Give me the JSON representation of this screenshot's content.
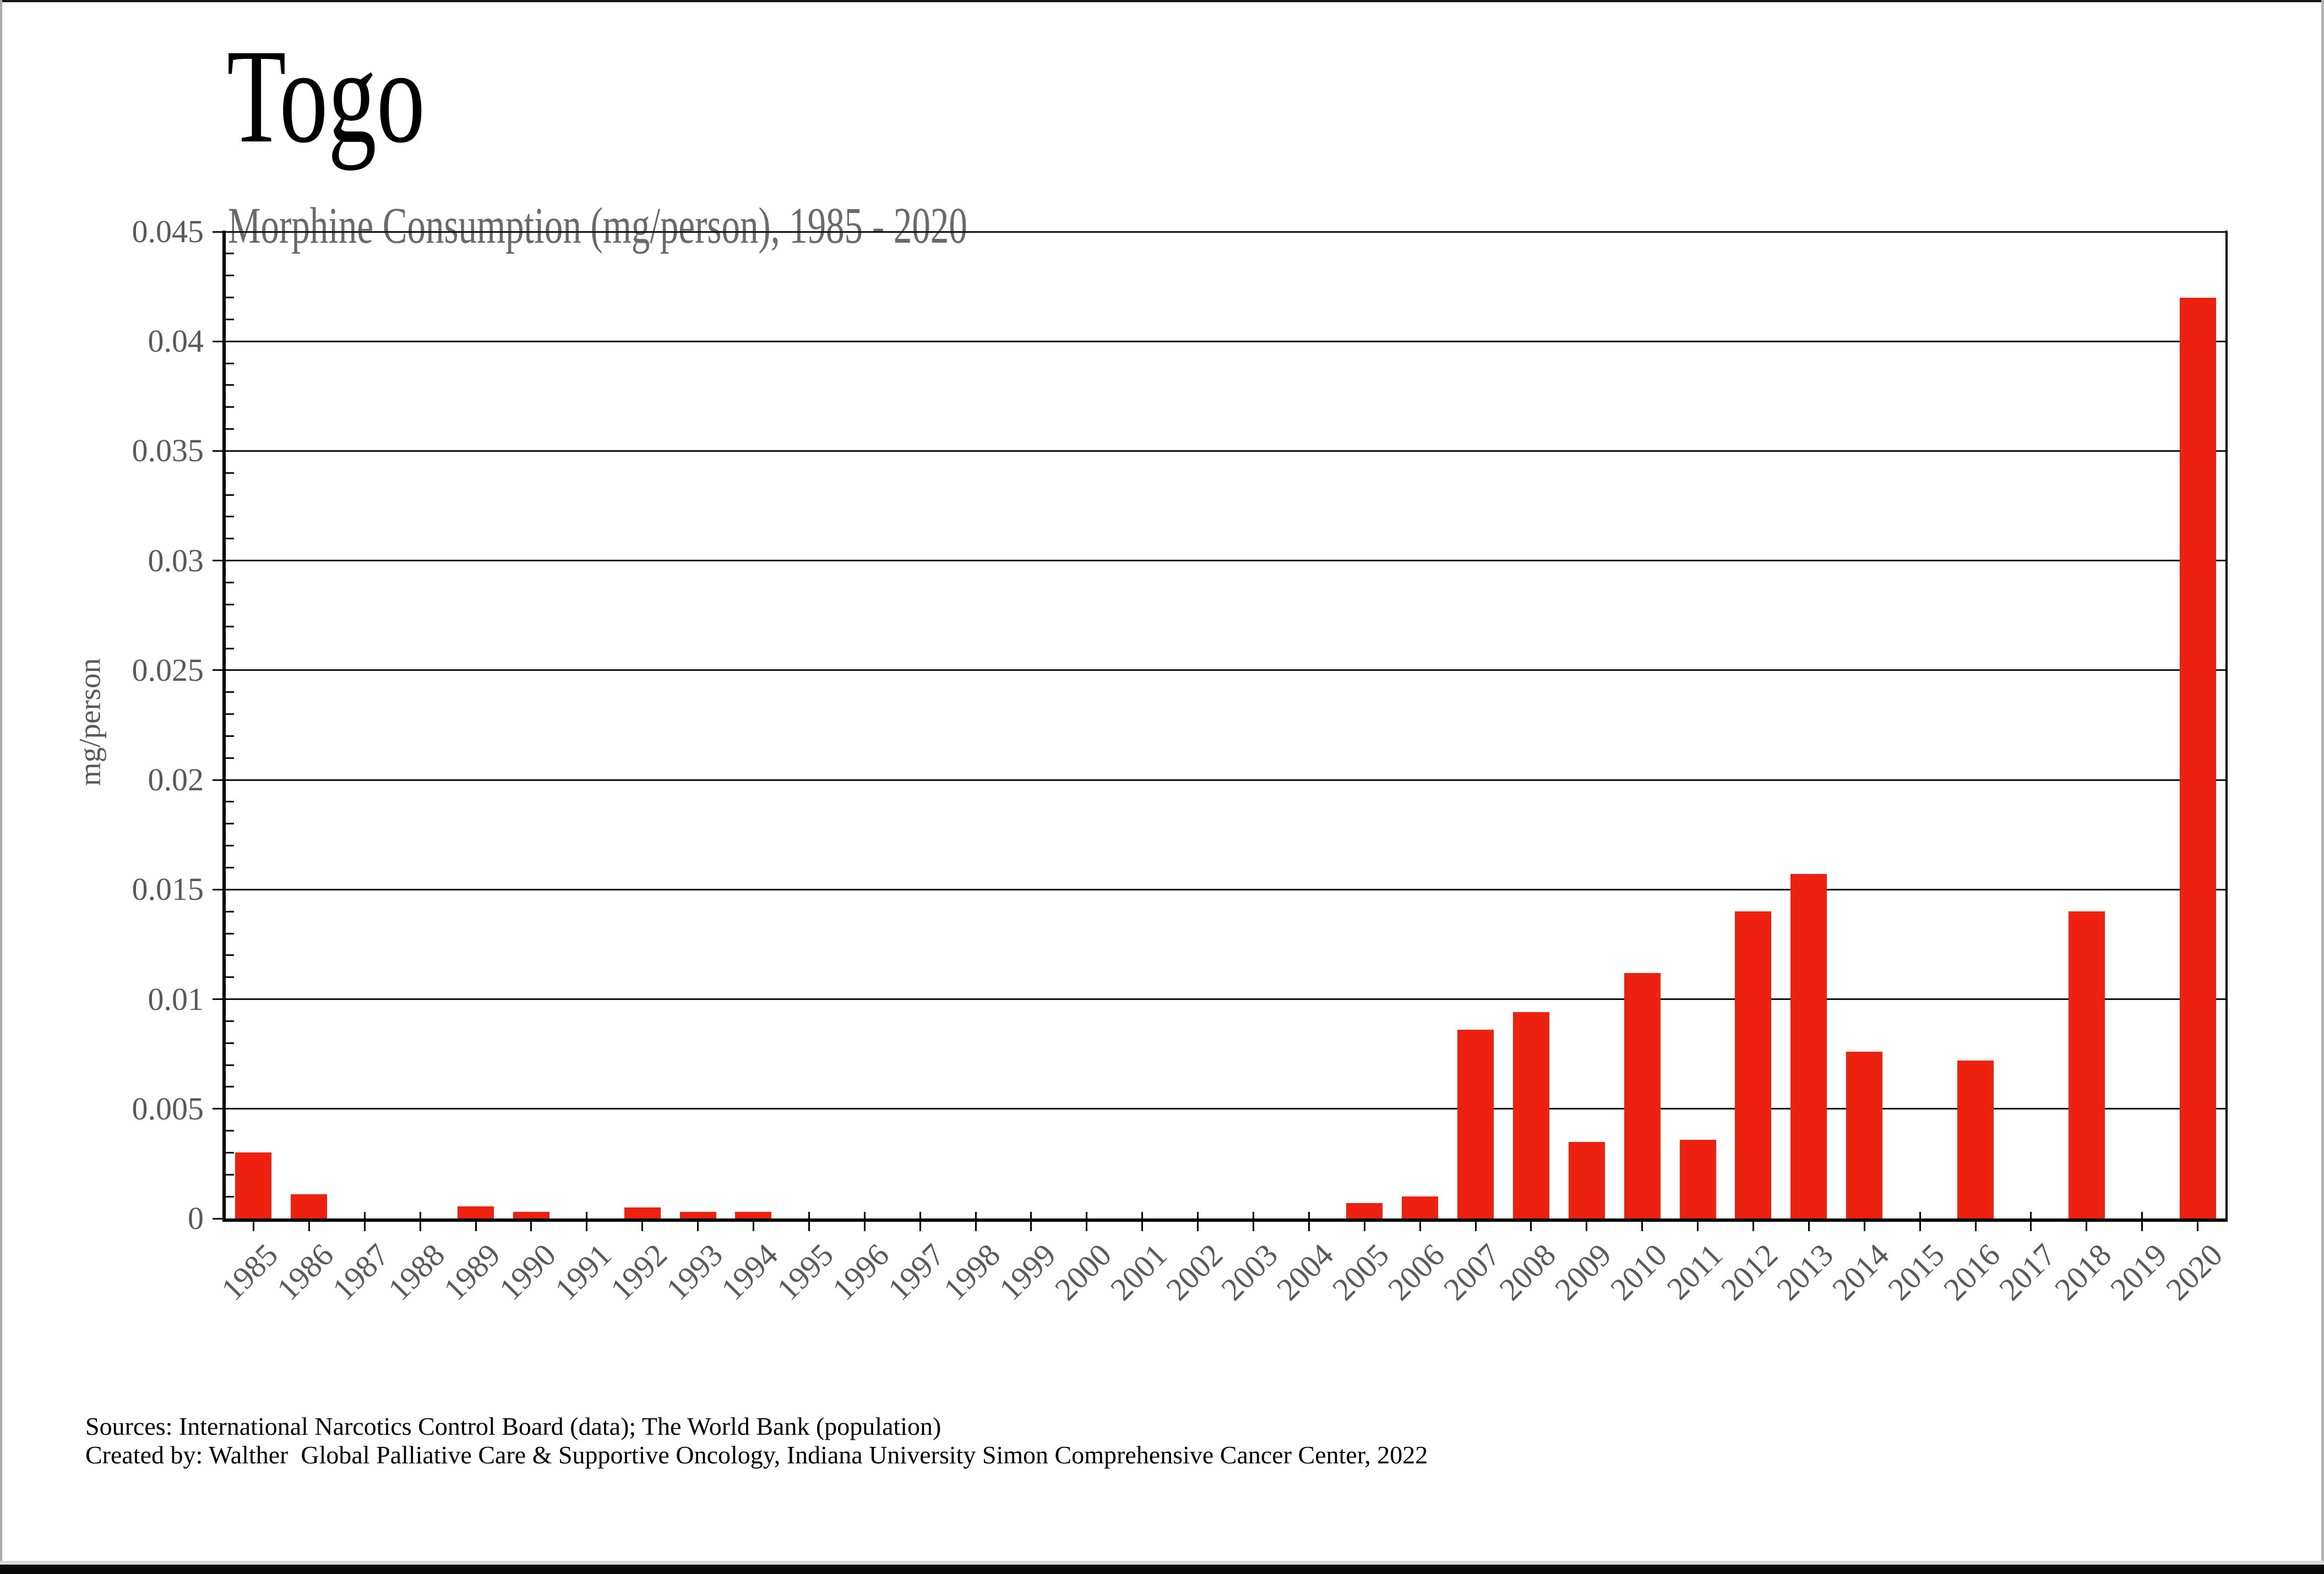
{
  "page": {
    "title": "Togo",
    "subtitle": "Morphine Consumption (mg/person), 1985 - 2020",
    "footer_line1": "Sources: International Narcotics Control Board (data); The World Bank (population)",
    "footer_line2": "Created by: Walther  Global Palliative Care & Supportive Oncology, Indiana University Simon Comprehensive Cancer Center, 2022"
  },
  "colors": {
    "bar": "#ee2010",
    "gridline": "#111111",
    "axis": "#000000",
    "tick_label_gray": "#595959",
    "subtitle_gray": "#6a6a6a",
    "bottom_bar": "#0a0a0a"
  },
  "chart_data": {
    "type": "bar",
    "title": "Togo",
    "subtitle": "Morphine Consumption (mg/person), 1985 - 2020",
    "xlabel": "",
    "ylabel": "mg/person",
    "ylim": [
      0,
      0.045
    ],
    "ytick_step": 0.005,
    "yminor_step": 0.001,
    "ytick_labels": [
      "0",
      "0.005",
      "0.01",
      "0.015",
      "0.02",
      "0.025",
      "0.03",
      "0.035",
      "0.04",
      "0.045"
    ],
    "grid": true,
    "legend_position": "none",
    "categories": [
      "1985",
      "1986",
      "1987",
      "1988",
      "1989",
      "1990",
      "1991",
      "1992",
      "1993",
      "1994",
      "1995",
      "1996",
      "1997",
      "1998",
      "1999",
      "2000",
      "2001",
      "2002",
      "2003",
      "2004",
      "2005",
      "2006",
      "2007",
      "2008",
      "2009",
      "2010",
      "2011",
      "2012",
      "2013",
      "2014",
      "2015",
      "2016",
      "2017",
      "2018",
      "2019",
      "2020"
    ],
    "values": [
      0.003,
      0.0011,
      0,
      0,
      0.00055,
      0.0003,
      0,
      0.0005,
      0.0003,
      0.0003,
      0,
      0,
      0,
      0,
      0,
      0,
      0,
      0,
      0,
      0,
      0.0007,
      0.001,
      0.0086,
      0.0094,
      0.0035,
      0.0112,
      0.0036,
      0.014,
      0.0157,
      0.0076,
      0,
      0.0072,
      0,
      0.014,
      0,
      0.042
    ]
  }
}
